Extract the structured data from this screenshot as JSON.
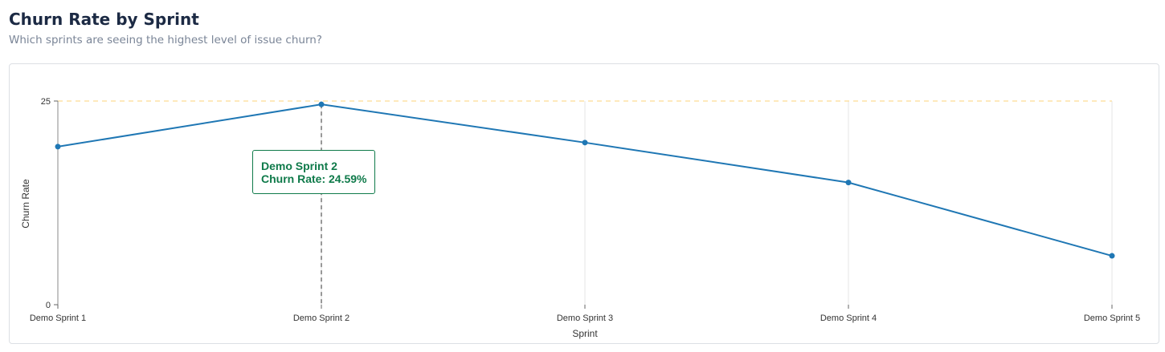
{
  "header": {
    "title": "Churn Rate by Sprint",
    "subtitle": "Which sprints are seeing the highest level of issue churn?"
  },
  "chart_data": {
    "type": "line",
    "categories": [
      "Demo Sprint 1",
      "Demo Sprint 2",
      "Demo Sprint 3",
      "Demo Sprint 4",
      "Demo Sprint 5"
    ],
    "series": [
      {
        "values": [
          19.4,
          24.59,
          19.9,
          15.0,
          6.0
        ]
      }
    ],
    "xlabel": "Sprint",
    "ylabel": "Churn Rate",
    "ylim": [
      0,
      25
    ],
    "yticks": [
      "0",
      "25"
    ],
    "reference_line": {
      "value": 25,
      "color": "#fde2a6"
    },
    "line_color": "#1f77b4",
    "grid": "vertical",
    "tooltip": {
      "category": "Demo Sprint 2",
      "line": "Churn Rate: 24.59%",
      "color": "#0f7a4a"
    }
  }
}
